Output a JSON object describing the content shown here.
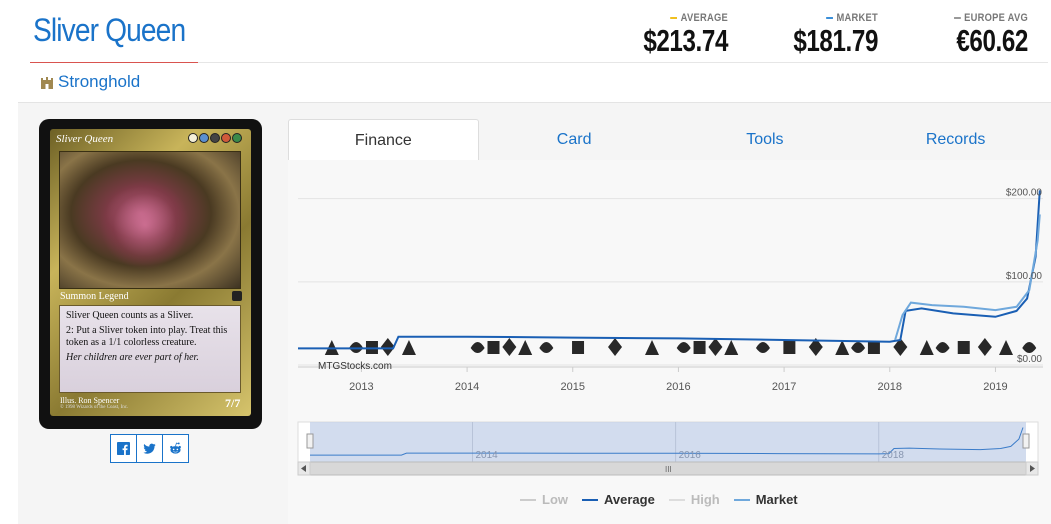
{
  "card": {
    "title": "Sliver Queen",
    "set_name": "Stronghold",
    "name_on_card": "Sliver Queen",
    "type_line": "Summon Legend",
    "rules_text_1": "Sliver Queen counts as a Sliver.",
    "rules_text_2": "2: Put a Sliver token into play. Treat this token as a 1/1 colorless creature.",
    "flavor_text": "Her children are ever part of her.",
    "illustrator": "Illus. Ron Spencer",
    "copyright": "© 1998 Wizards of the Coast, Inc.",
    "power_toughness": "7/7"
  },
  "prices": {
    "average_label": "AVERAGE",
    "average_value": "$213.74",
    "market_label": "MARKET",
    "market_value": "$181.79",
    "europe_label": "EUROPE AVG",
    "europe_value": "€60.62"
  },
  "colors": {
    "link": "#1a73c9",
    "average": "#1a5fb4",
    "market": "#6fa8dc",
    "low": "#bbbbbb",
    "high": "#cccccc",
    "average_dash": "#f0c020",
    "market_dash": "#3b8fd9",
    "europe_dash": "#999999"
  },
  "tabs": [
    {
      "label": "Finance"
    },
    {
      "label": "Card"
    },
    {
      "label": "Tools"
    },
    {
      "label": "Records"
    }
  ],
  "share": [
    "facebook-icon",
    "twitter-icon",
    "reddit-icon"
  ],
  "chart_data": {
    "type": "line",
    "watermark": "MTGStocks.com",
    "x_ticks": [
      "2013",
      "2014",
      "2015",
      "2016",
      "2017",
      "2018",
      "2019"
    ],
    "y_ticks": [
      "$0.00",
      "$100.00",
      "$200.00"
    ],
    "ylim": [
      0,
      220
    ],
    "xlim": [
      2012.4,
      2019.45
    ],
    "navigator_ticks": [
      "2014",
      "2016",
      "2018"
    ],
    "legend": [
      "Low",
      "Average",
      "High",
      "Market"
    ],
    "series": [
      {
        "name": "Average",
        "x": [
          2012.4,
          2013.0,
          2013.3,
          2013.35,
          2014.0,
          2015.0,
          2016.0,
          2017.0,
          2018.0,
          2018.1,
          2018.15,
          2018.3,
          2018.6,
          2019.0,
          2019.2,
          2019.3,
          2019.38,
          2019.42
        ],
        "values": [
          20,
          20,
          20,
          34,
          34,
          33,
          32,
          30,
          28,
          30,
          65,
          68,
          62,
          58,
          65,
          80,
          130,
          210
        ]
      },
      {
        "name": "Market",
        "x": [
          2018.05,
          2018.12,
          2018.2,
          2018.4,
          2018.7,
          2019.0,
          2019.2,
          2019.32,
          2019.4,
          2019.42
        ],
        "values": [
          30,
          60,
          75,
          72,
          70,
          66,
          70,
          90,
          150,
          181
        ]
      }
    ]
  }
}
